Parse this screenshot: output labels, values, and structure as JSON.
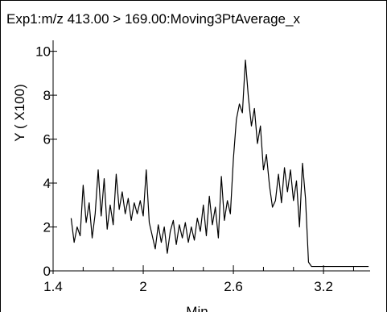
{
  "chart_data": {
    "type": "line",
    "title": "Exp1:m/z 413.00 > 169.00:Moving3PtAverage_x",
    "x_label": "Min",
    "y_label": "Y ( X100)",
    "xlim": [
      1.4,
      3.51
    ],
    "ylim": [
      0,
      10.5
    ],
    "xticks": [
      1.4,
      2.0,
      2.6,
      3.2
    ],
    "xminorticks": [
      1.6,
      1.8,
      2.2,
      2.4,
      2.8,
      3.0,
      3.4
    ],
    "yticks": [
      0,
      2,
      4,
      6,
      8,
      10
    ],
    "x": [
      1.52,
      1.54,
      1.56,
      1.58,
      1.6,
      1.62,
      1.64,
      1.66,
      1.68,
      1.7,
      1.72,
      1.74,
      1.76,
      1.78,
      1.8,
      1.82,
      1.84,
      1.86,
      1.88,
      1.9,
      1.92,
      1.94,
      1.96,
      1.98,
      2.0,
      2.02,
      2.04,
      2.06,
      2.08,
      2.1,
      2.12,
      2.14,
      2.16,
      2.18,
      2.2,
      2.22,
      2.24,
      2.26,
      2.28,
      2.3,
      2.32,
      2.34,
      2.36,
      2.38,
      2.4,
      2.42,
      2.44,
      2.46,
      2.48,
      2.5,
      2.52,
      2.54,
      2.56,
      2.58,
      2.6,
      2.62,
      2.64,
      2.66,
      2.68,
      2.7,
      2.72,
      2.74,
      2.76,
      2.78,
      2.8,
      2.82,
      2.84,
      2.86,
      2.88,
      2.9,
      2.92,
      2.94,
      2.96,
      2.98,
      3.0,
      3.02,
      3.04,
      3.06,
      3.08,
      3.1,
      3.12,
      3.14,
      3.16,
      3.18,
      3.2,
      3.22,
      3.24,
      3.26,
      3.28,
      3.3,
      3.32,
      3.34,
      3.36,
      3.38,
      3.4,
      3.42,
      3.44,
      3.46,
      3.48,
      3.5
    ],
    "series": [
      {
        "color": "#000000",
        "values": [
          2.4,
          1.3,
          2.0,
          1.6,
          3.9,
          2.2,
          3.1,
          1.5,
          2.6,
          4.6,
          2.5,
          4.2,
          1.9,
          3.0,
          2.1,
          4.4,
          2.8,
          3.6,
          2.6,
          3.3,
          2.3,
          3.1,
          2.6,
          3.2,
          2.5,
          4.6,
          2.2,
          1.6,
          1.0,
          2.1,
          1.3,
          2.0,
          0.8,
          1.8,
          2.3,
          1.2,
          2.1,
          1.5,
          2.2,
          1.3,
          2.0,
          1.4,
          2.4,
          1.8,
          3.0,
          1.6,
          3.4,
          2.1,
          2.9,
          1.5,
          4.3,
          2.3,
          3.2,
          2.6,
          5.1,
          6.9,
          7.6,
          7.2,
          9.6,
          7.9,
          6.6,
          7.4,
          5.8,
          6.6,
          4.6,
          5.3,
          3.9,
          2.9,
          3.2,
          4.4,
          3.1,
          4.7,
          3.6,
          4.6,
          3.2,
          4.1,
          2.0,
          4.9,
          3.3,
          0.4,
          0.2,
          0.2,
          0.2,
          0.2,
          0.2,
          0.2,
          0.2,
          0.2,
          0.2,
          0.2,
          0.2,
          0.2,
          0.2,
          0.2,
          0.2,
          0.2,
          0.2,
          0.2,
          0.2,
          0.2
        ]
      }
    ]
  }
}
